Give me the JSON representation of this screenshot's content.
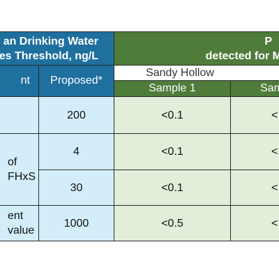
{
  "header": {
    "left_title": [
      "an Drinking Water",
      "es Threshold, ng/L"
    ],
    "right_title": [
      "P",
      "detected for M"
    ]
  },
  "subheader": {
    "left_col0": "nt",
    "left_col1": "Proposed*",
    "site": "Sandy Hollow",
    "samples": [
      "Sample 1",
      "Sam"
    ]
  },
  "table": {
    "rows": [
      {
        "label": [],
        "proposed": "200",
        "sample1": "<0.1",
        "sample2": "<"
      },
      {
        "label": [
          "of",
          "FHxS"
        ],
        "proposed": "4",
        "sample1": "<0.1",
        "sample2": "<"
      },
      {
        "label": [],
        "proposed": "30",
        "sample1": "<0.1",
        "sample2": "<"
      },
      {
        "label": [
          "ent",
          "value"
        ],
        "proposed": "1000",
        "sample1": "<0.5",
        "sample2": "<"
      }
    ]
  }
}
